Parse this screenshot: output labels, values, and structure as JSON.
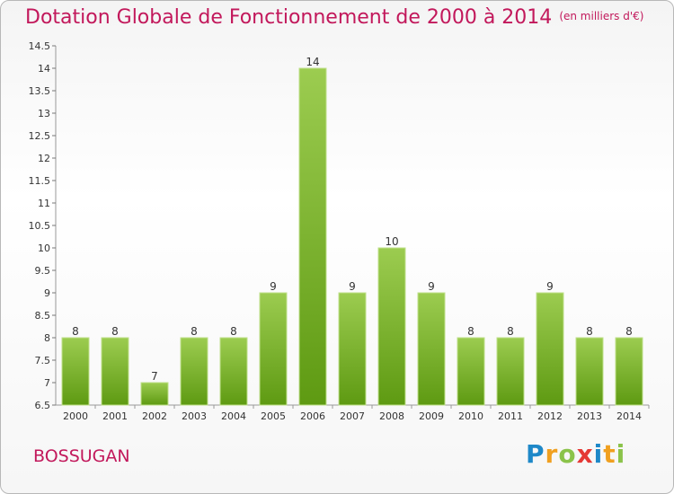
{
  "header": {
    "title": "Dotation Globale de Fonctionnement de 2000 à 2014",
    "unit": "(en milliers d'€)"
  },
  "footer": {
    "town": "BOSSUGAN",
    "logo": "Proxiti"
  },
  "colors": {
    "title": "#c2185b",
    "bar_top": "#9ccc50",
    "bar_bottom": "#5e9a12"
  },
  "chart_data": {
    "type": "bar",
    "title": "Dotation Globale de Fonctionnement de 2000 à 2014",
    "subtitle": "(en milliers d'€)",
    "xlabel": "",
    "ylabel": "",
    "categories": [
      "2000",
      "2001",
      "2002",
      "2003",
      "2004",
      "2005",
      "2006",
      "2007",
      "2008",
      "2009",
      "2010",
      "2011",
      "2012",
      "2013",
      "2014"
    ],
    "values": [
      8,
      8,
      7,
      8,
      8,
      9,
      14,
      9,
      10,
      9,
      8,
      8,
      9,
      8,
      8
    ],
    "ylim": [
      6.5,
      14.5
    ],
    "yticks": [
      "6.5",
      "7",
      "7.5",
      "8",
      "8.5",
      "9",
      "9.5",
      "10",
      "10.5",
      "11",
      "11.5",
      "12",
      "12.5",
      "13",
      "13.5",
      "14",
      "14.5"
    ],
    "grid": false,
    "legend": "none"
  }
}
